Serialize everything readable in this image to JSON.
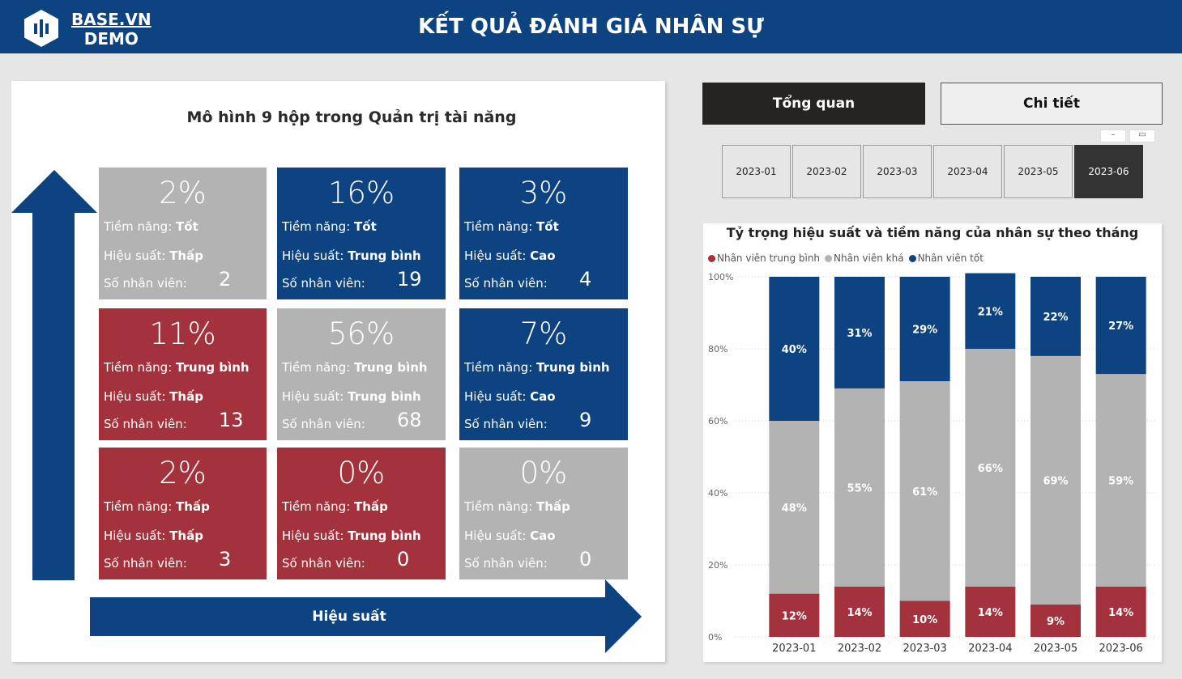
{
  "header": {
    "logo_line1": "BASE.VN",
    "logo_line2": "DEMO",
    "title": "KẾT QUẢ ĐÁNH GIÁ NHÂN SỰ",
    "color": "#0c4380"
  },
  "nine_box": {
    "title": "Mô hình 9 hộp trong Quản trị tài năng",
    "y_axis_label": "Tiềm năng",
    "x_axis_label": "Hiệu suất",
    "labels": {
      "potential": "Tiềm năng:",
      "performance": "Hiệu suất:",
      "count": "Số nhân viên:"
    },
    "boxes": [
      {
        "pct": "2%",
        "potential": "Tốt",
        "performance": "Thấp",
        "count": "2",
        "color": "gray"
      },
      {
        "pct": "16%",
        "potential": "Tốt",
        "performance": "Trung bình",
        "count": "19",
        "color": "blue"
      },
      {
        "pct": "3%",
        "potential": "Tốt",
        "performance": "Cao",
        "count": "4",
        "color": "blue"
      },
      {
        "pct": "11%",
        "potential": "Trung bình",
        "performance": "Thấp",
        "count": "13",
        "color": "red"
      },
      {
        "pct": "56%",
        "potential": "Trung bình",
        "performance": "Trung bình",
        "count": "68",
        "color": "gray"
      },
      {
        "pct": "7%",
        "potential": "Trung bình",
        "performance": "Cao",
        "count": "9",
        "color": "blue"
      },
      {
        "pct": "2%",
        "potential": "Thấp",
        "performance": "Thấp",
        "count": "3",
        "color": "red"
      },
      {
        "pct": "0%",
        "potential": "Thấp",
        "performance": "Trung bình",
        "count": "0",
        "color": "red"
      },
      {
        "pct": "0%",
        "potential": "Thấp",
        "performance": "Cao",
        "count": "0",
        "color": "gray"
      }
    ]
  },
  "nav": {
    "overview_label": "Tổng quan",
    "detail_label": "Chi tiết"
  },
  "month_slicer": {
    "months": [
      "2023-01",
      "2023-02",
      "2023-03",
      "2023-04",
      "2023-05",
      "2023-06"
    ],
    "selected": "2023-06"
  },
  "chart_data": {
    "type": "bar",
    "stacked": true,
    "title": "Tỷ trọng hiệu suất và tiềm năng của nhân sự theo tháng",
    "categories": [
      "2023-01",
      "2023-02",
      "2023-03",
      "2023-04",
      "2023-05",
      "2023-06"
    ],
    "y_ticks": [
      "0%",
      "20%",
      "40%",
      "60%",
      "80%",
      "100%"
    ],
    "ylim": [
      0,
      100
    ],
    "legend_position": "top-left",
    "series": [
      {
        "name": "Nhân viên trung bình",
        "color": "#a3323c",
        "values": [
          12,
          14,
          10,
          14,
          9,
          14
        ],
        "labels": [
          "12%",
          "14%",
          "10%",
          "14%",
          "9%",
          "14%"
        ]
      },
      {
        "name": "Nhân viên khá",
        "color": "#b3b3b3",
        "values": [
          48,
          55,
          61,
          66,
          69,
          59
        ],
        "labels": [
          "48%",
          "55%",
          "61%",
          "66%",
          "69%",
          "59%"
        ]
      },
      {
        "name": "Nhân viên tốt",
        "color": "#0c4380",
        "values": [
          40,
          31,
          29,
          21,
          22,
          27
        ],
        "labels": [
          "40%",
          "31%",
          "29%",
          "21%",
          "22%",
          "27%"
        ]
      }
    ],
    "grid": true
  }
}
